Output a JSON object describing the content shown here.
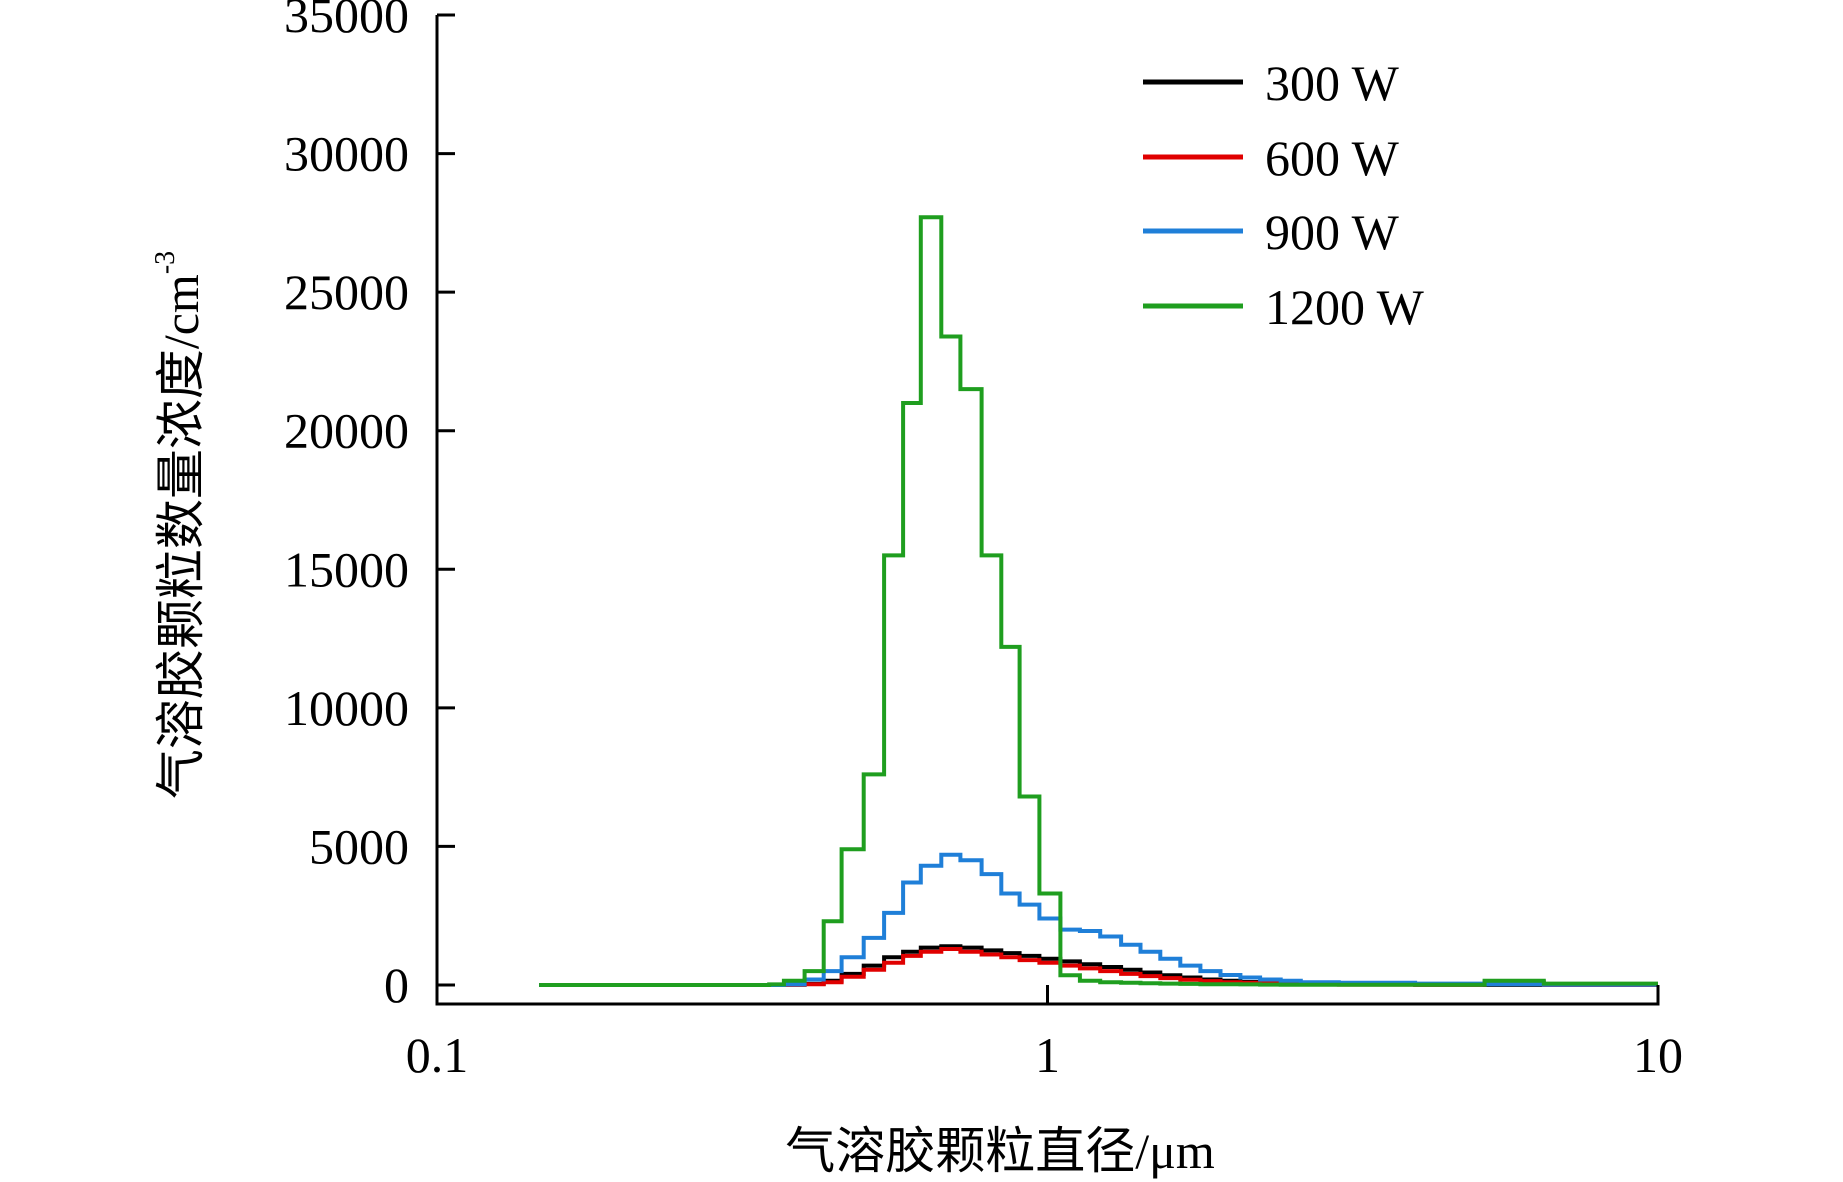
{
  "chart_data": {
    "type": "line",
    "step": true,
    "xscale": "log",
    "xlim": [
      0.1,
      10
    ],
    "ylim": [
      0,
      35000
    ],
    "grid": false,
    "legend_position": "top-right",
    "xlabel_main": "气溶胶颗粒直径",
    "xlabel_unit": "/μm",
    "ylabel_main": "气溶胶颗粒数量浓度",
    "ylabel_unit": "/cm",
    "ylabel_exp": "-3",
    "xticks": [
      {
        "value": 0.1,
        "label": "0.1"
      },
      {
        "value": 1,
        "label": "1"
      },
      {
        "value": 10,
        "label": "10"
      }
    ],
    "yticks": [
      {
        "value": 0,
        "label": "0"
      },
      {
        "value": 5000,
        "label": "5000"
      },
      {
        "value": 10000,
        "label": "10000"
      },
      {
        "value": 15000,
        "label": "15000"
      },
      {
        "value": 20000,
        "label": "20000"
      },
      {
        "value": 25000,
        "label": "25000"
      },
      {
        "value": 30000,
        "label": "30000"
      },
      {
        "value": 35000,
        "label": "35000"
      }
    ],
    "bin_edges": [
      0.147,
      0.35,
      0.37,
      0.4,
      0.43,
      0.46,
      0.5,
      0.54,
      0.58,
      0.62,
      0.67,
      0.72,
      0.78,
      0.84,
      0.9,
      0.97,
      1.05,
      1.13,
      1.22,
      1.32,
      1.42,
      1.53,
      1.65,
      1.78,
      1.92,
      2.07,
      2.23,
      2.41,
      2.6,
      3.0,
      4.0,
      5.2,
      6.5,
      10.0
    ],
    "series": [
      {
        "name": "300 W",
        "color": "#000000",
        "values": [
          0,
          0,
          10,
          40,
          150,
          400,
          700,
          1000,
          1200,
          1350,
          1400,
          1350,
          1250,
          1150,
          1050,
          950,
          850,
          750,
          650,
          550,
          450,
          350,
          270,
          200,
          150,
          110,
          80,
          60,
          40,
          20,
          10,
          5,
          0
        ]
      },
      {
        "name": "600 W",
        "color": "#e00000",
        "values": [
          0,
          0,
          10,
          30,
          100,
          300,
          550,
          800,
          1050,
          1200,
          1300,
          1200,
          1100,
          1000,
          900,
          800,
          700,
          600,
          500,
          400,
          320,
          250,
          190,
          140,
          100,
          80,
          60,
          40,
          25,
          15,
          10,
          100,
          0
        ]
      },
      {
        "name": "900 W",
        "color": "#1f7fd8",
        "values": [
          0,
          0,
          20,
          200,
          500,
          1000,
          1700,
          2600,
          3700,
          4300,
          4700,
          4500,
          4000,
          3300,
          2900,
          2400,
          2000,
          1950,
          1750,
          1450,
          1200,
          950,
          700,
          500,
          360,
          270,
          200,
          150,
          100,
          80,
          50,
          30,
          10
        ]
      },
      {
        "name": "1200 W",
        "color": "#1f9e1f",
        "values": [
          0,
          20,
          150,
          500,
          2300,
          4900,
          7600,
          15500,
          21000,
          27700,
          23400,
          21500,
          15500,
          12200,
          6800,
          3300,
          350,
          150,
          100,
          80,
          60,
          50,
          40,
          30,
          25,
          20,
          15,
          10,
          10,
          10,
          10,
          150,
          50
        ]
      }
    ]
  }
}
